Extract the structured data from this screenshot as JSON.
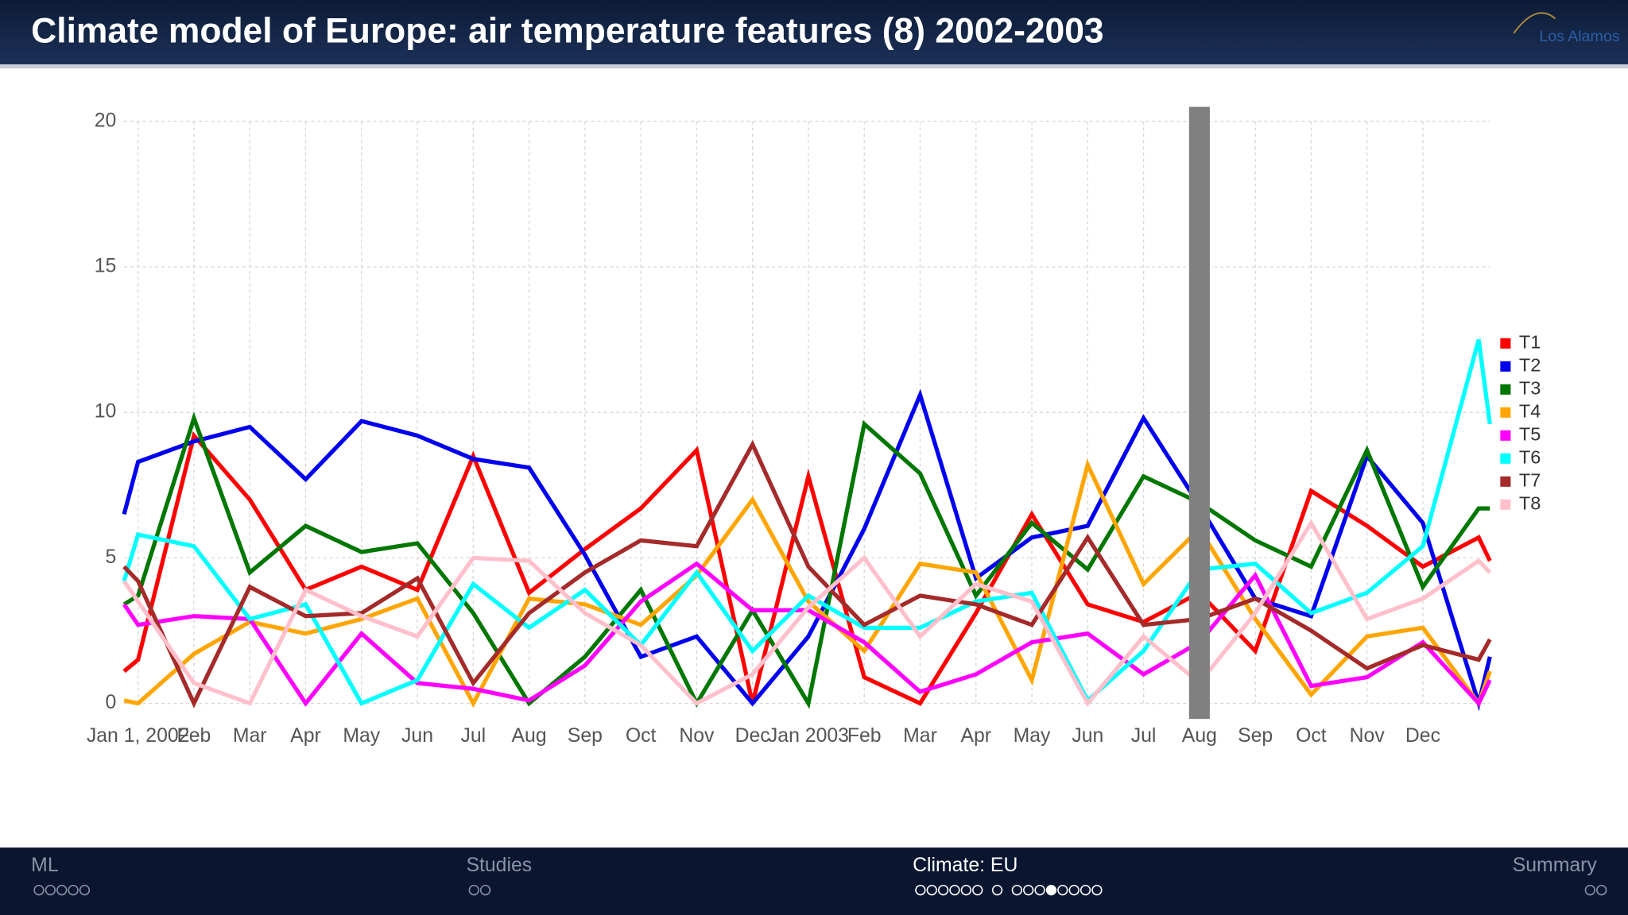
{
  "header": {
    "title": "Climate model of Europe: air temperature features (8) 2002-2003",
    "logo": "Los Alamos"
  },
  "chart_data": {
    "type": "line",
    "x": [
      -0.25,
      0,
      1,
      2,
      3,
      4,
      5,
      6,
      7,
      8,
      9,
      10,
      11,
      12,
      13,
      14,
      15,
      16,
      17,
      18,
      19,
      20,
      21,
      22,
      23,
      24,
      24.2
    ],
    "xlim": [
      -0.25,
      24.2
    ],
    "xticks": [
      {
        "value": 0,
        "label": "Jan 1, 2002"
      },
      {
        "value": 1,
        "label": "Feb"
      },
      {
        "value": 2,
        "label": "Mar"
      },
      {
        "value": 3,
        "label": "Apr"
      },
      {
        "value": 4,
        "label": "May"
      },
      {
        "value": 5,
        "label": "Jun"
      },
      {
        "value": 6,
        "label": "Jul"
      },
      {
        "value": 7,
        "label": "Aug"
      },
      {
        "value": 8,
        "label": "Sep"
      },
      {
        "value": 9,
        "label": "Oct"
      },
      {
        "value": 10,
        "label": "Nov"
      },
      {
        "value": 11,
        "label": "Dec"
      },
      {
        "value": 12,
        "label": "Jan 2003"
      },
      {
        "value": 13,
        "label": "Feb"
      },
      {
        "value": 14,
        "label": "Mar"
      },
      {
        "value": 15,
        "label": "Apr"
      },
      {
        "value": 16,
        "label": "May"
      },
      {
        "value": 17,
        "label": "Jun"
      },
      {
        "value": 18,
        "label": "Jul"
      },
      {
        "value": 19,
        "label": "Aug"
      },
      {
        "value": 20,
        "label": "Sep"
      },
      {
        "value": 21,
        "label": "Oct"
      },
      {
        "value": 22,
        "label": "Nov"
      },
      {
        "value": 23,
        "label": "Dec"
      }
    ],
    "ylim": [
      0,
      20
    ],
    "yticks": [
      0,
      5,
      10,
      15,
      20
    ],
    "grid": true,
    "legend": "right",
    "highlight_x": 19,
    "highlight_color": "#808080",
    "series": [
      {
        "name": "T1",
        "color": "#ff0000",
        "values": [
          1.1,
          1.5,
          9.2,
          7.0,
          3.9,
          4.7,
          3.9,
          8.5,
          3.8,
          5.3,
          6.7,
          8.7,
          0,
          7.8,
          0.9,
          0,
          3.1,
          6.5,
          3.4,
          2.8,
          3.8,
          1.8,
          7.3,
          6.1,
          4.7,
          5.7,
          4.9
        ]
      },
      {
        "name": "T2",
        "color": "#0000ee",
        "values": [
          6.5,
          8.3,
          9.0,
          9.5,
          7.7,
          9.7,
          9.2,
          8.4,
          8.1,
          5.1,
          1.6,
          2.3,
          0,
          2.3,
          6.0,
          10.6,
          4.3,
          5.7,
          6.1,
          9.8,
          6.8,
          3.6,
          3.0,
          8.5,
          6.2,
          0,
          1.6
        ]
      },
      {
        "name": "T3",
        "color": "#007700",
        "values": [
          3.4,
          3.7,
          9.8,
          4.5,
          6.1,
          5.2,
          5.5,
          3.1,
          0,
          1.6,
          3.9,
          0,
          3.2,
          0,
          9.6,
          7.9,
          3.7,
          6.2,
          4.6,
          7.8,
          6.9,
          5.6,
          4.7,
          8.7,
          4.0,
          6.7,
          6.7
        ]
      },
      {
        "name": "T4",
        "color": "#ffa500",
        "values": [
          0.1,
          0,
          1.7,
          2.8,
          2.4,
          2.9,
          3.6,
          0,
          3.6,
          3.4,
          2.7,
          4.4,
          7.0,
          3.5,
          1.8,
          4.8,
          4.5,
          0.8,
          8.2,
          4.1,
          6.0,
          2.9,
          0.3,
          2.3,
          2.6,
          0,
          1.1
        ]
      },
      {
        "name": "T5",
        "color": "#ff00ff",
        "values": [
          3.4,
          2.7,
          3.0,
          2.9,
          0,
          2.4,
          0.7,
          0.5,
          0.1,
          1.3,
          3.5,
          4.8,
          3.2,
          3.2,
          2.1,
          0.4,
          1.0,
          2.1,
          2.4,
          1.0,
          2.1,
          4.4,
          0.6,
          0.9,
          2.1,
          0,
          0.8
        ]
      },
      {
        "name": "T6",
        "color": "#00ffff",
        "values": [
          4.2,
          5.8,
          5.4,
          2.9,
          3.4,
          0,
          0.8,
          4.1,
          2.6,
          3.9,
          2.0,
          4.5,
          1.8,
          3.7,
          2.6,
          2.6,
          3.5,
          3.8,
          0.1,
          1.8,
          4.6,
          4.8,
          3.1,
          3.8,
          5.4,
          12.5,
          9.6
        ]
      },
      {
        "name": "T7",
        "color": "#a52a2a",
        "values": [
          4.7,
          4.2,
          0,
          4.0,
          3.0,
          3.1,
          4.3,
          0.7,
          3.1,
          4.5,
          5.6,
          5.4,
          8.9,
          4.7,
          2.7,
          3.7,
          3.4,
          2.7,
          5.7,
          2.7,
          2.9,
          3.6,
          2.5,
          1.2,
          2.0,
          1.5,
          2.2
        ]
      },
      {
        "name": "T8",
        "color": "#ffc0cb",
        "values": [
          4.2,
          3.5,
          0.7,
          0,
          3.9,
          3.0,
          2.3,
          5.0,
          4.9,
          3.1,
          2.0,
          0,
          1.0,
          3.3,
          5.0,
          2.3,
          4.1,
          3.5,
          0,
          2.3,
          0.7,
          3.1,
          6.2,
          2.9,
          3.6,
          4.9,
          4.5
        ]
      }
    ]
  },
  "nav": [
    {
      "label": "ML",
      "dots": [
        5
      ]
    },
    {
      "label": "Studies",
      "dots": [
        2
      ]
    },
    {
      "label": "Climate: EU",
      "dots": [
        6,
        1,
        8
      ],
      "active": true,
      "active_dot": [
        2,
        3
      ]
    },
    {
      "label": "Summary",
      "dots": [
        2
      ]
    }
  ]
}
